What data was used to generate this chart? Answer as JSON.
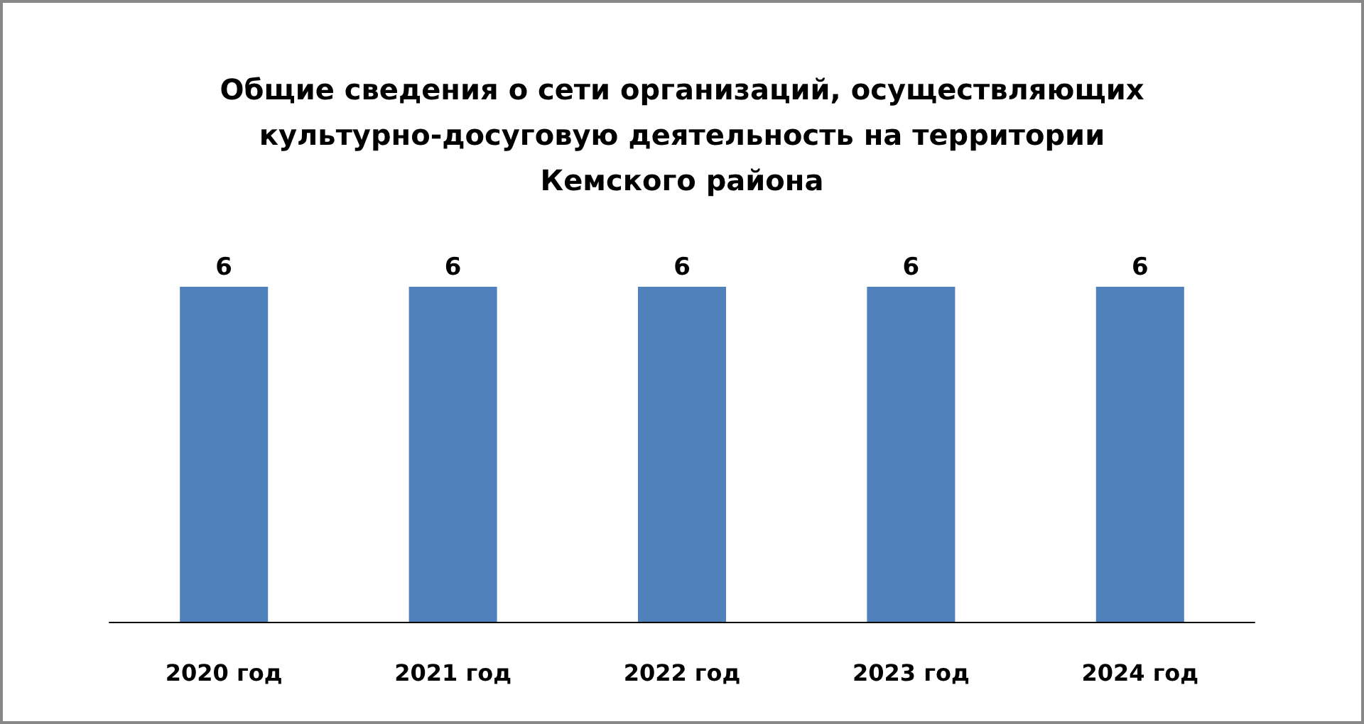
{
  "chart_data": {
    "type": "bar",
    "title": "Общие сведения о сети организаций, осуществляющих\nкультурно-досуговую деятельность на территории\nКемского района",
    "categories": [
      "2020 год",
      "2021 год",
      "2022 год",
      "2023 год",
      "2024 год"
    ],
    "values": [
      6,
      6,
      6,
      6,
      6
    ],
    "color": "#4f81bd",
    "data_labels": true
  }
}
